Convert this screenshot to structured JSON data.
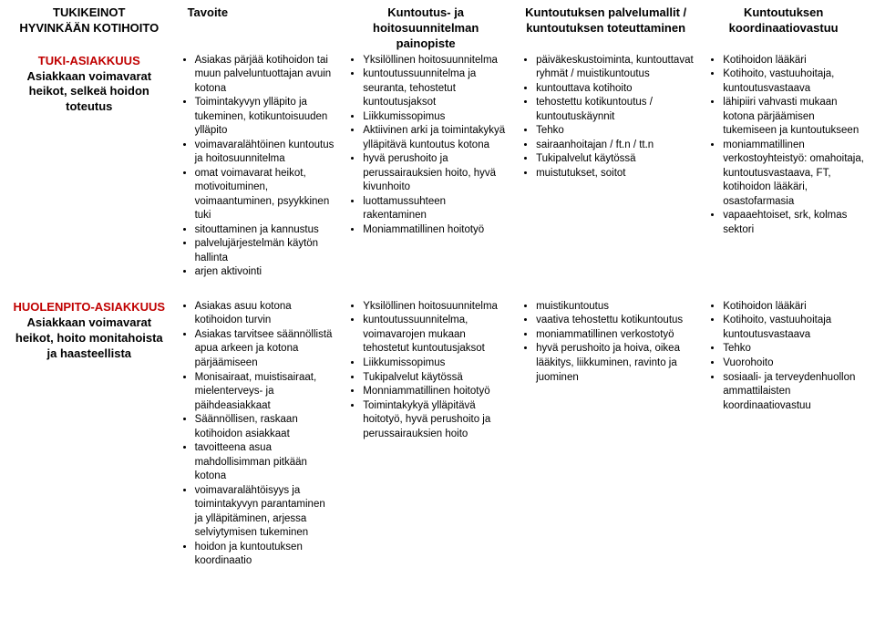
{
  "headers": {
    "col1a": "TUKIKEINOT",
    "col1b": "HYVINKÄÄN KOTIHOITO",
    "col2": "Tavoite",
    "col3": "Kuntoutus- ja hoitosuunnitelman painopiste",
    "col4": "Kuntoutuksen palvelumallit / kuntoutuksen toteuttaminen",
    "col5": "Kuntoutuksen koordinaatiovastuu"
  },
  "rows": [
    {
      "label_title": "TUKI-ASIAKKUUS",
      "label_sub": "Asiakkaan voimavarat heikot, selkeä hoidon toteutus",
      "col2": [
        "Asiakas pärjää kotihoidon tai muun palveluntuottajan avuin kotona",
        "Toimintakyvyn ylläpito ja tukeminen, kotikuntoisuuden ylläpito",
        "voimavaralähtöinen kuntoutus ja hoitosuunnitelma",
        "omat voimavarat heikot, motivoituminen, voimaantuminen, psyykkinen tuki",
        "sitouttaminen ja kannustus",
        "palvelujärjestelmän käytön hallinta",
        "arjen aktivointi"
      ],
      "col3": [
        "Yksilöllinen hoitosuunnitelma",
        "kuntoutussuunnitelma ja seuranta, tehostetut kuntoutusjaksot",
        "Liikkumissopimus",
        "Aktiivinen arki ja toimintakykyä ylläpitävä kuntoutus kotona",
        "hyvä perushoito ja perussairauksien hoito, hyvä kivunhoito",
        "luottamussuhteen rakentaminen",
        "Moniammatillinen hoitotyö"
      ],
      "col4": [
        "päiväkeskustoiminta, kuntouttavat ryhmät / muistikuntoutus",
        "kuntouttava kotihoito",
        "tehostettu kotikuntoutus / kuntoutuskäynnit",
        "Tehko",
        "sairaanhoitajan / ft.n / tt.n",
        "Tukipalvelut käytössä",
        "muistutukset, soitot"
      ],
      "col5": [
        "Kotihoidon lääkäri",
        "Kotihoito, vastuuhoitaja, kuntoutusvastaava",
        "lähipiiri vahvasti mukaan kotona pärjäämisen tukemiseen ja kuntoutukseen",
        "moniammatillinen verkostoyhteistyö: omahoitaja, kuntoutusvastaava, FT, kotihoidon lääkäri, osastofarmasia",
        "vapaaehtoiset, srk, kolmas sektori"
      ]
    },
    {
      "label_title": "HUOLENPITO-ASIAKKUUS",
      "label_sub": "Asiakkaan voimavarat heikot, hoito monitahoista ja haasteellista",
      "col2": [
        "Asiakas asuu kotona kotihoidon turvin",
        "Asiakas tarvitsee säännöllistä apua arkeen ja kotona pärjäämiseen",
        "Monisairaat, muistisairaat, mielenterveys- ja päihdeasiakkaat",
        "Säännöllisen, raskaan kotihoidon asiakkaat",
        "tavoitteena asua mahdollisimman pitkään kotona",
        "voimavaralähtöisyys ja toimintakyvyn parantaminen ja ylläpitäminen, arjessa selviytymisen tukeminen",
        "hoidon ja kuntoutuksen koordinaatio"
      ],
      "col3": [
        "Yksilöllinen hoitosuunnitelma",
        "kuntoutussuunnitelma, voimavarojen mukaan tehostetut kuntoutusjaksot",
        "Liikkumissopimus",
        "Tukipalvelut käytössä",
        "Monniammatillinen hoitotyö",
        "Toimintakykyä ylläpitävä hoitotyö, hyvä perushoito ja perussairauksien hoito"
      ],
      "col4": [
        "muistikuntoutus",
        "vaativa tehostettu kotikuntoutus",
        "moniammatillinen verkostotyö",
        "hyvä perushoito ja hoiva, oikea lääkitys, liikkuminen, ravinto ja juominen"
      ],
      "col5": [
        "Kotihoidon lääkäri",
        "Kotihoito, vastuuhoitaja kuntoutusvastaava",
        "Tehko",
        "Vuorohoito",
        "sosiaali- ja terveydenhuollon ammattilaisten koordinaatiovastuu"
      ]
    }
  ]
}
